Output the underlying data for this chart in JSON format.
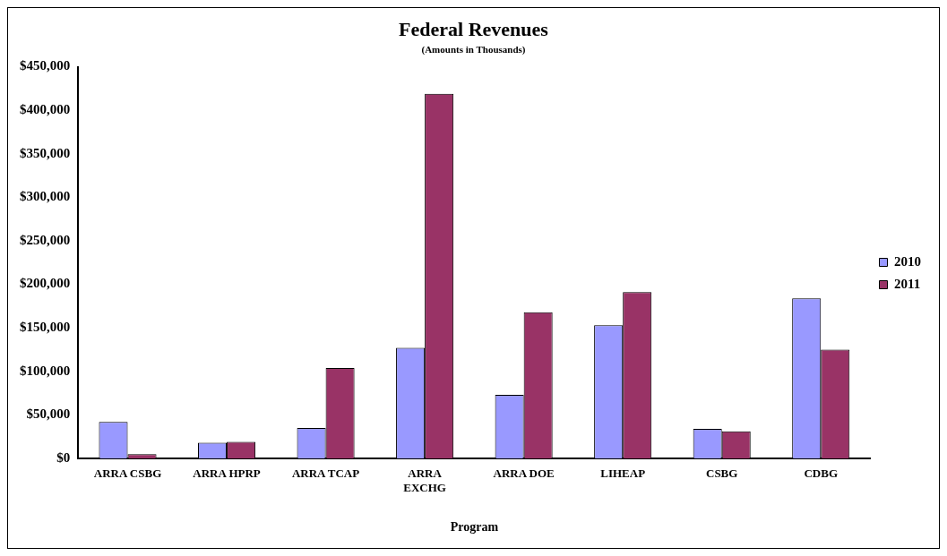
{
  "chart_data": {
    "type": "bar",
    "title": "Federal Revenues",
    "subtitle": "(Amounts in Thousands)",
    "xlabel": "Program",
    "categories": [
      "ARRA CSBG",
      "ARRA HPRP",
      "ARRA TCAP",
      "ARRA EXCHG",
      "ARRA DOE",
      "LIHEAP",
      "CSBG",
      "CDBG"
    ],
    "series": [
      {
        "name": "2010",
        "color": "#9999ff",
        "values": [
          42000,
          18000,
          35000,
          127000,
          73000,
          153000,
          34000,
          184000
        ]
      },
      {
        "name": "2011",
        "color": "#993366",
        "values": [
          5000,
          19000,
          104000,
          419000,
          168000,
          191000,
          31000,
          125000
        ]
      }
    ],
    "ylim": [
      0,
      450000
    ],
    "yticks": [
      {
        "value": 0,
        "label": "$0"
      },
      {
        "value": 50000,
        "label": "$50,000"
      },
      {
        "value": 100000,
        "label": "$100,000"
      },
      {
        "value": 150000,
        "label": "$150,000"
      },
      {
        "value": 200000,
        "label": "$200,000"
      },
      {
        "value": 250000,
        "label": "$250,000"
      },
      {
        "value": 300000,
        "label": "$300,000"
      },
      {
        "value": 350000,
        "label": "$350,000"
      },
      {
        "value": 400000,
        "label": "$400,000"
      },
      {
        "value": 450000,
        "label": "$450,000"
      }
    ],
    "grid": false,
    "legend": "right"
  }
}
